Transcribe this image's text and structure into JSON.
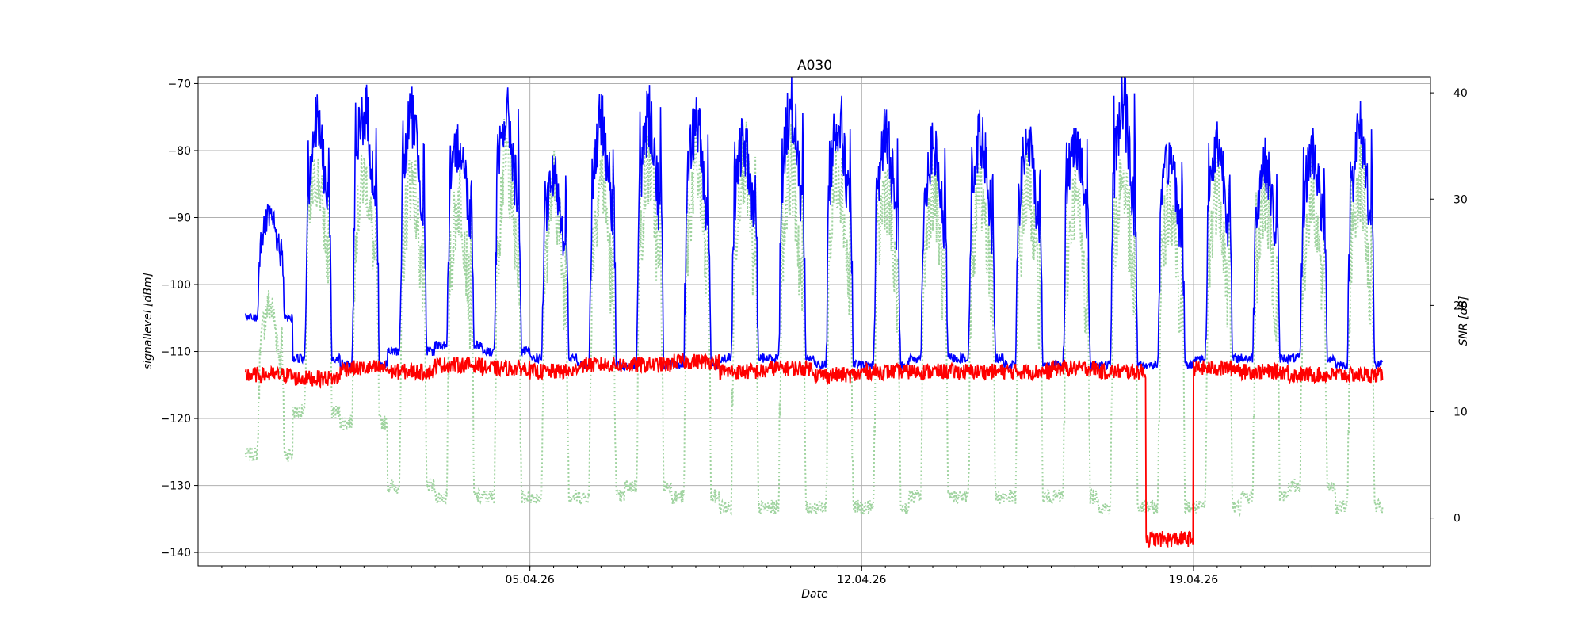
{
  "chart_data": {
    "type": "line",
    "title": "A030",
    "xlabel": "Date",
    "ylabel": "signallevel [dBm]",
    "y2label": "SNR [dB]",
    "x_range": [
      "2026-03-29",
      "2026-04-24"
    ],
    "ylim": [
      -142,
      -69
    ],
    "y2lim": [
      -4.5,
      41.5
    ],
    "x_major_ticks": [
      "2026-04-05",
      "2026-04-12",
      "2026-04-19"
    ],
    "x_major_labels": [
      "05.04.26",
      "12.04.26",
      "19.04.26"
    ],
    "y_ticks": [
      -70,
      -80,
      -90,
      -100,
      -110,
      -120,
      -130,
      -140
    ],
    "y_tick_labels": [
      "−70",
      "−80",
      "−90",
      "−100",
      "−110",
      "−120",
      "−130",
      "−140"
    ],
    "y2_ticks": [
      40,
      30,
      20,
      10,
      0
    ],
    "y2_tick_labels": [
      "40",
      "30",
      "20",
      "10",
      "0"
    ],
    "grid": true,
    "legend": "none",
    "colors": {
      "signal": "#0000ff",
      "noise": "#ff0000",
      "snr": "#9fd39f",
      "grid": "#b0b0b0"
    },
    "series": [
      {
        "axis": "left",
        "style": "solid",
        "x": [
          "2026-03-30",
          "2026-03-31",
          "2026-04-01",
          "2026-04-02",
          "2026-04-03",
          "2026-04-04",
          "2026-04-05",
          "2026-04-06",
          "2026-04-07",
          "2026-04-08",
          "2026-04-09",
          "2026-04-10",
          "2026-04-11",
          "2026-04-12",
          "2026-04-13",
          "2026-04-14",
          "2026-04-15",
          "2026-04-16",
          "2026-04-17",
          "2026-04-18",
          "2026-04-19",
          "2026-04-20",
          "2026-04-21",
          "2026-04-22"
        ],
        "day_min": [
          -105,
          -111,
          -112,
          -110,
          -109,
          -110,
          -111,
          -112,
          -112,
          -112,
          -111,
          -111,
          -112,
          -112,
          -111,
          -111,
          -112,
          -112,
          -112,
          -112,
          -111,
          -111,
          -111,
          -112
        ],
        "day_max": [
          -90,
          -76,
          -74,
          -75,
          -79,
          -75,
          -84,
          -76,
          -75,
          -76,
          -79,
          -74,
          -75,
          -78,
          -80,
          -78,
          -79,
          -78,
          -73,
          -81,
          -79,
          -82,
          -80,
          -77
        ]
      },
      {
        "axis": "left",
        "style": "solid",
        "x": [
          "2026-03-30",
          "2026-03-31",
          "2026-04-01",
          "2026-04-02",
          "2026-04-03",
          "2026-04-04",
          "2026-04-05",
          "2026-04-06",
          "2026-04-07",
          "2026-04-08",
          "2026-04-09",
          "2026-04-10",
          "2026-04-11",
          "2026-04-12",
          "2026-04-13",
          "2026-04-14",
          "2026-04-15",
          "2026-04-16",
          "2026-04-17",
          "2026-04-18",
          "2026-04-19",
          "2026-04-20",
          "2026-04-21",
          "2026-04-22"
        ],
        "values": [
          -113.5,
          -114,
          -112.5,
          -113,
          -112,
          -112.5,
          -113,
          -112,
          -112,
          -111.5,
          -113,
          -112.5,
          -113.5,
          -113,
          -113,
          -113,
          -113,
          -112.5,
          -113,
          -138,
          -112.5,
          -113,
          -113.5,
          -113.5
        ]
      },
      {
        "axis": "right",
        "style": "dotted",
        "x": [
          "2026-03-30",
          "2026-03-31",
          "2026-04-01",
          "2026-04-02",
          "2026-04-03",
          "2026-04-04",
          "2026-04-05",
          "2026-04-06",
          "2026-04-07",
          "2026-04-08",
          "2026-04-09",
          "2026-04-10",
          "2026-04-11",
          "2026-04-12",
          "2026-04-13",
          "2026-04-14",
          "2026-04-15",
          "2026-04-16",
          "2026-04-17",
          "2026-04-18",
          "2026-04-19",
          "2026-04-20",
          "2026-04-21",
          "2026-04-22"
        ],
        "day_min": [
          6,
          10,
          9,
          3,
          2,
          2,
          2,
          2,
          3,
          2,
          1,
          1,
          1,
          1,
          2,
          2,
          2,
          2,
          1,
          1,
          1,
          2,
          3,
          1
        ],
        "day_max": [
          20,
          32,
          32,
          32,
          30,
          34,
          31,
          32,
          33,
          33,
          34,
          33,
          33,
          31,
          31,
          31,
          31,
          30,
          32,
          30,
          31,
          30,
          30,
          32
        ]
      }
    ]
  }
}
